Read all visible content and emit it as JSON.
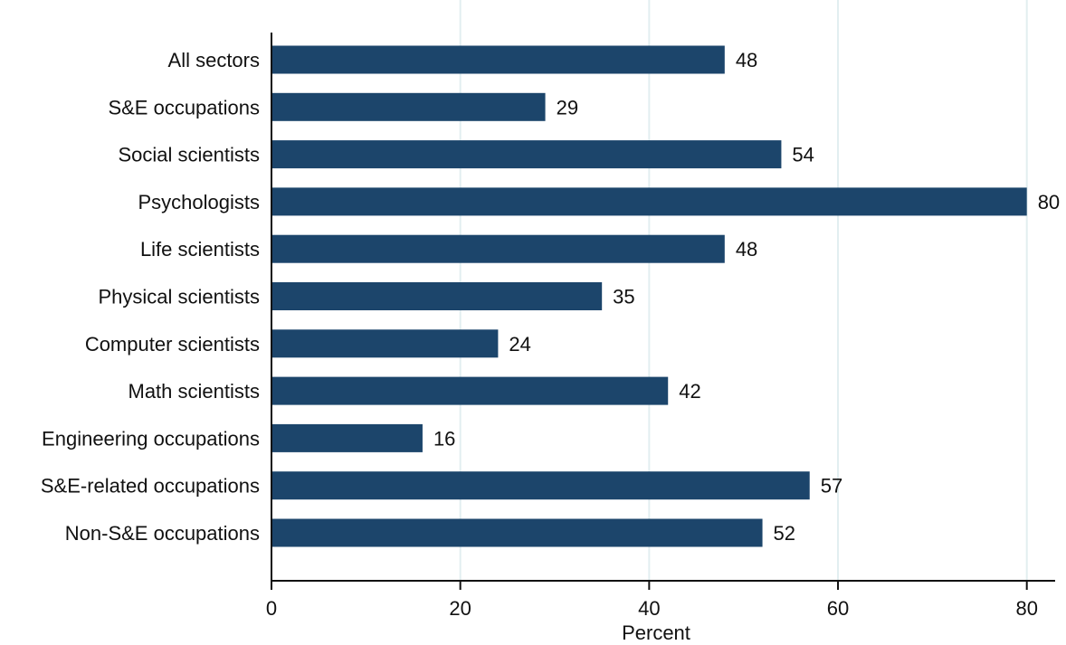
{
  "chart_data": {
    "type": "bar",
    "orientation": "horizontal",
    "title": "",
    "categories": [
      "All sectors",
      "S&E occupations",
      "Social scientists",
      "Psychologists",
      "Life scientists",
      "Physical scientists",
      "Computer scientists",
      "Math scientists",
      "Engineering occupations",
      "S&E-related occupations",
      "Non-S&E occupations"
    ],
    "values": [
      48,
      29,
      54,
      80,
      48,
      35,
      24,
      42,
      16,
      57,
      52
    ],
    "value_labels": [
      "48",
      "29",
      "54",
      "80",
      "48",
      "35",
      "24",
      "42",
      "16",
      "57",
      "52"
    ],
    "xlabel": "Percent",
    "ylabel": "",
    "xlim": [
      0,
      83
    ],
    "xticks": [
      0,
      20,
      40,
      60,
      80
    ],
    "xtick_labels": [
      "0",
      "20",
      "40",
      "60",
      "80"
    ],
    "grid": "vertical",
    "legend": "none",
    "colors": {
      "bar": "#1c456b",
      "grid": "#e2eef0",
      "axis": "#111111",
      "title": "#1f4e79"
    }
  }
}
